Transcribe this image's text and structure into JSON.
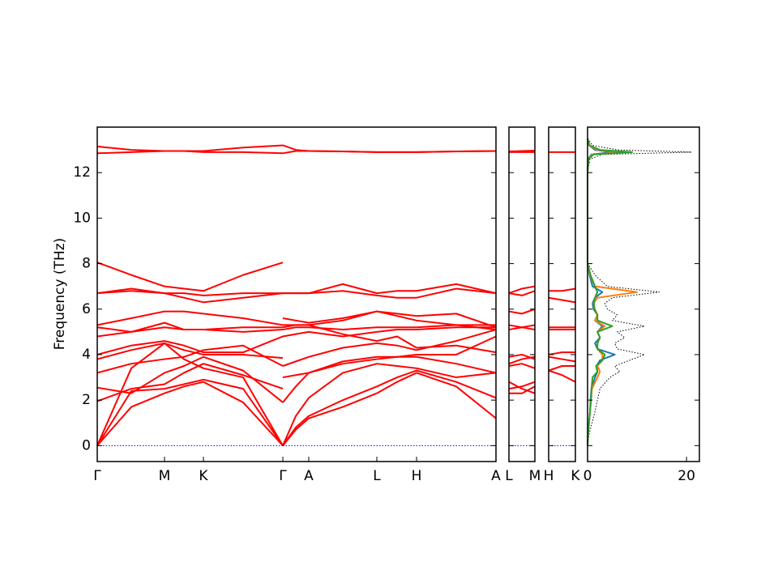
{
  "chart_data": [
    {
      "type": "line",
      "ylabel": "Frequency (THz)",
      "x": [
        0,
        0.42,
        0.83,
        1.07,
        1.31,
        1.8,
        2.29,
        2.29,
        2.45,
        2.61,
        3.03,
        3.45,
        3.7,
        3.94,
        4.43,
        4.92
      ],
      "xlim": [
        0,
        4.92
      ],
      "ylim": [
        -0.7,
        14
      ],
      "yticks": [
        0,
        2,
        4,
        6,
        8,
        10,
        12
      ],
      "ytick_labels": true,
      "xticks": [
        {
          "value": 0,
          "label": "Γ"
        },
        {
          "value": 0.83,
          "label": "M"
        },
        {
          "value": 1.31,
          "label": "K"
        },
        {
          "value": 2.29,
          "label": "Γ"
        },
        {
          "value": 2.61,
          "label": "A"
        },
        {
          "value": 3.45,
          "label": "L"
        },
        {
          "value": 3.94,
          "label": "H"
        },
        {
          "value": 4.92,
          "label": "A"
        }
      ],
      "series": [
        {
          "color": "#ff0000",
          "values": [
            0,
            1.7,
            2.3,
            2.6,
            2.8,
            1.9,
            0,
            0,
            0.7,
            1.2,
            1.7,
            2.3,
            2.8,
            3.2,
            2.6,
            1.2
          ]
        },
        {
          "color": "#ff0000",
          "values": [
            0,
            2.4,
            2.5,
            2.7,
            2.9,
            2.5,
            0,
            0,
            0.8,
            1.3,
            2.0,
            2.6,
            3.0,
            3.3,
            2.8,
            2.1
          ]
        },
        {
          "color": "#ff0000",
          "values": [
            0,
            3.4,
            4.5,
            3.8,
            3.4,
            3.0,
            0,
            0,
            1.3,
            2.1,
            3.2,
            3.6,
            3.5,
            3.4,
            3.0,
            3.2
          ]
        },
        {
          "color": "#ff0000",
          "values": [
            1.95,
            2.5,
            2.7,
            3.2,
            3.6,
            3.1,
            2.5,
            3.0,
            3.1,
            3.2,
            3.6,
            3.8,
            3.9,
            3.9,
            3.6,
            3.2
          ]
        },
        {
          "color": "#ff0000",
          "values": [
            2.55,
            2.3,
            3.2,
            3.5,
            3.9,
            3.3,
            1.9,
            1.9,
            2.6,
            3.2,
            3.7,
            3.9,
            3.9,
            4.0,
            4.0,
            4.8
          ]
        },
        {
          "color": "#ff0000",
          "values": [
            3.2,
            3.6,
            3.8,
            3.9,
            4.2,
            4.4,
            3.5,
            3.5,
            3.7,
            3.9,
            4.3,
            4.5,
            4.4,
            4.2,
            4.6,
            5.1
          ]
        },
        {
          "color": "#ff0000",
          "values": [
            3.8,
            4.2,
            4.5,
            4.2,
            4.0,
            4.0,
            3.85,
            4.8,
            4.9,
            5.0,
            4.8,
            5.0,
            5.1,
            5.1,
            5.2,
            5.2
          ]
        },
        {
          "color": "#ff0000",
          "values": [
            4.0,
            4.4,
            4.6,
            4.4,
            4.1,
            4.1,
            4.8,
            5.1,
            5.2,
            5.2,
            5.1,
            5.2,
            5.2,
            5.2,
            5.3,
            5.3
          ]
        },
        {
          "color": "#ff0000",
          "values": [
            4.8,
            5.0,
            5.2,
            5.1,
            5.1,
            5.0,
            5.1,
            5.2,
            5.3,
            5.3,
            5.5,
            5.9,
            5.7,
            5.5,
            5.3,
            5.1
          ]
        },
        {
          "color": "#ff0000",
          "values": [
            5.2,
            5.0,
            5.4,
            5.1,
            5.1,
            5.2,
            5.2,
            5.6,
            5.5,
            5.4,
            5.6,
            5.9,
            5.8,
            5.7,
            5.8,
            5.2
          ]
        },
        {
          "color": "#ff0000",
          "values": [
            5.3,
            5.6,
            5.9,
            5.9,
            5.8,
            5.6,
            5.3,
            5.3,
            5.3,
            5.3,
            4.9,
            4.6,
            4.8,
            4.3,
            4.4,
            4.1
          ]
        },
        {
          "color": "#ff0000",
          "values": [
            6.7,
            6.8,
            6.7,
            6.7,
            6.6,
            6.7,
            6.7,
            6.7,
            6.7,
            6.7,
            7.1,
            6.7,
            6.8,
            6.8,
            7.1,
            6.7
          ]
        },
        {
          "color": "#ff0000",
          "values": [
            6.7,
            6.9,
            6.7,
            6.5,
            6.3,
            6.5,
            6.7,
            6.7,
            6.7,
            6.7,
            6.8,
            6.6,
            6.5,
            6.5,
            6.9,
            6.7
          ]
        },
        {
          "color": "#ff0000",
          "values": [
            8.05,
            7.5,
            7.0,
            6.9,
            6.8,
            7.5,
            8.05,
            null,
            null,
            null,
            null,
            null,
            null,
            null,
            null,
            null
          ]
        },
        {
          "color": "#ff0000",
          "values": [
            12.85,
            12.9,
            12.95,
            12.95,
            12.9,
            12.9,
            12.85,
            12.85,
            12.95,
            12.95,
            12.93,
            12.9,
            12.9,
            12.9,
            12.93,
            12.95
          ]
        },
        {
          "color": "#ff0000",
          "values": [
            13.15,
            13.0,
            12.95,
            12.95,
            12.95,
            13.1,
            13.2,
            13.2,
            13.0,
            12.95,
            12.93,
            12.9,
            12.9,
            12.9,
            12.93,
            12.95
          ]
        },
        {
          "color": "#0000ff",
          "linestyle": "dotted",
          "values": [
            0,
            0,
            0,
            0,
            0,
            0,
            0,
            0,
            0,
            0,
            0,
            0,
            0,
            0,
            0,
            0
          ]
        }
      ]
    },
    {
      "type": "line",
      "x": [
        0,
        0.5,
        1
      ],
      "xlim": [
        0,
        1
      ],
      "ylim": [
        -0.7,
        14
      ],
      "yticks": [
        0,
        2,
        4,
        6,
        8,
        10,
        12
      ],
      "ytick_labels": false,
      "xticks": [
        {
          "value": 0,
          "label": "L"
        },
        {
          "value": 1,
          "label": "M"
        }
      ],
      "series": [
        {
          "color": "#ff0000",
          "values": [
            2.3,
            2.3,
            2.6
          ]
        },
        {
          "color": "#ff0000",
          "values": [
            2.5,
            2.6,
            2.8
          ]
        },
        {
          "color": "#ff0000",
          "values": [
            2.8,
            2.5,
            2.3
          ]
        },
        {
          "color": "#ff0000",
          "values": [
            3.5,
            3.6,
            3.4
          ]
        },
        {
          "color": "#ff0000",
          "values": [
            3.6,
            3.8,
            3.9
          ]
        },
        {
          "color": "#ff0000",
          "values": [
            3.9,
            4.0,
            3.8
          ]
        },
        {
          "color": "#ff0000",
          "values": [
            5.1,
            5.2,
            5.3
          ]
        },
        {
          "color": "#ff0000",
          "values": [
            5.3,
            5.2,
            5.1
          ]
        },
        {
          "color": "#ff0000",
          "values": [
            5.9,
            5.8,
            6.0
          ]
        },
        {
          "color": "#ff0000",
          "values": [
            6.7,
            6.6,
            6.8
          ]
        },
        {
          "color": "#ff0000",
          "values": [
            6.7,
            6.9,
            7.0
          ]
        },
        {
          "color": "#ff0000",
          "values": [
            12.93,
            12.95,
            12.97
          ]
        },
        {
          "color": "#ff0000",
          "values": [
            12.9,
            12.9,
            12.9
          ]
        },
        {
          "color": "#0000ff",
          "linestyle": "dotted",
          "values": [
            0,
            0,
            0
          ]
        }
      ]
    },
    {
      "type": "line",
      "x": [
        0,
        0.5,
        1
      ],
      "xlim": [
        0,
        1
      ],
      "ylim": [
        -0.7,
        14
      ],
      "yticks": [
        0,
        2,
        4,
        6,
        8,
        10,
        12
      ],
      "ytick_labels": false,
      "xticks": [
        {
          "value": 0,
          "label": "H"
        },
        {
          "value": 1,
          "label": "K"
        }
      ],
      "series": [
        {
          "color": "#ff0000",
          "values": [
            3.3,
            3.1,
            2.8
          ]
        },
        {
          "color": "#ff0000",
          "values": [
            3.3,
            3.5,
            3.5
          ]
        },
        {
          "color": "#ff0000",
          "values": [
            3.9,
            3.8,
            3.7
          ]
        },
        {
          "color": "#ff0000",
          "values": [
            4.0,
            4.1,
            4.1
          ]
        },
        {
          "color": "#ff0000",
          "values": [
            5.1,
            5.1,
            5.1
          ]
        },
        {
          "color": "#ff0000",
          "values": [
            5.2,
            5.2,
            5.2
          ]
        },
        {
          "color": "#ff0000",
          "values": [
            6.5,
            6.4,
            6.3
          ]
        },
        {
          "color": "#ff0000",
          "values": [
            6.8,
            6.8,
            6.9
          ]
        },
        {
          "color": "#ff0000",
          "values": [
            12.9,
            12.9,
            12.9
          ]
        },
        {
          "color": "#0000ff",
          "linestyle": "dotted",
          "values": [
            0,
            0,
            0
          ]
        }
      ]
    },
    {
      "type": "line",
      "orientation": "horizontal",
      "y": [
        0,
        0.5,
        1,
        1.5,
        2,
        2.5,
        3,
        3.25,
        3.5,
        3.75,
        4,
        4.25,
        4.5,
        4.75,
        5,
        5.25,
        5.5,
        5.75,
        6,
        6.25,
        6.5,
        6.75,
        7,
        7.5,
        8,
        12,
        12.6,
        12.8,
        12.9,
        13.0,
        13.2,
        13.5
      ],
      "xlim": [
        0,
        22.6
      ],
      "xticks": [
        0,
        20
      ],
      "ylim": [
        -0.7,
        14
      ],
      "yticks": [
        0,
        2,
        4,
        6,
        8,
        10,
        12
      ],
      "ytick_labels": false,
      "series": [
        {
          "color": "#000000",
          "linestyle": "dotted",
          "values": [
            0,
            0.3,
            0.9,
            1.5,
            2.0,
            2.5,
            4.5,
            6.5,
            5.5,
            8.5,
            11.5,
            6,
            5.5,
            7.5,
            6,
            11.5,
            5,
            6,
            4,
            3.5,
            5,
            14.5,
            4,
            1.5,
            0,
            0,
            0.5,
            3,
            21,
            6,
            1,
            0
          ]
        },
        {
          "color": "#1f77b4",
          "values": [
            0,
            0.1,
            0.3,
            0.5,
            0.6,
            0.8,
            1.5,
            2,
            1.8,
            2.5,
            5.5,
            2,
            1.5,
            2.5,
            2,
            3,
            1.5,
            2,
            1.2,
            1,
            1.5,
            3,
            1,
            0.4,
            0,
            0,
            0.1,
            0.8,
            5,
            1.5,
            0.3,
            0
          ]
        },
        {
          "color": "#ff7f0e",
          "values": [
            0,
            0.1,
            0.3,
            0.5,
            0.7,
            0.9,
            2,
            2.5,
            2,
            3,
            3,
            2,
            2,
            2.5,
            2,
            3.5,
            1.5,
            2,
            1.5,
            1.2,
            2,
            10,
            1.5,
            0.5,
            0,
            0,
            0.2,
            1,
            7,
            2,
            0.3,
            0
          ]
        },
        {
          "color": "#2ca02c",
          "values": [
            0,
            0.1,
            0.3,
            0.5,
            0.7,
            0.8,
            1,
            2,
            1.7,
            3,
            3.5,
            2,
            2,
            2.5,
            2,
            5,
            2,
            2,
            1.3,
            1.3,
            1.5,
            2,
            1.5,
            0.6,
            0,
            0,
            0.2,
            1.2,
            9,
            2.5,
            0.4,
            0
          ]
        }
      ]
    }
  ]
}
